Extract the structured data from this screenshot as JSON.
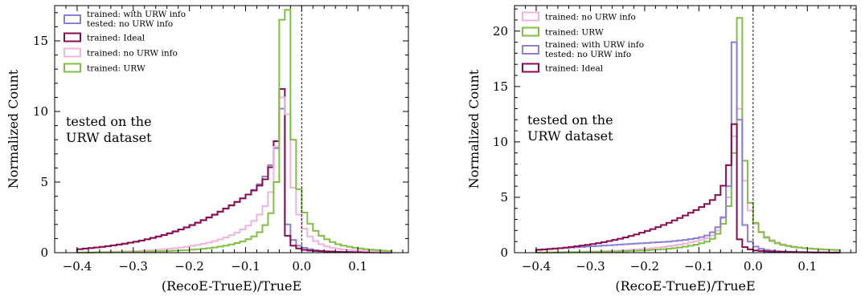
{
  "chart_data": [
    {
      "type": "step-histogram",
      "xlabel": "(RecoE-TrueE)/TrueE",
      "ylabel": "Normalized Count",
      "xlim": [
        -0.44,
        0.19
      ],
      "ylim": [
        0,
        17.5
      ],
      "xticks": [
        -0.4,
        -0.3,
        -0.2,
        -0.1,
        0.0,
        0.1
      ],
      "xtick_labels": [
        "−0.4",
        "−0.3",
        "−0.2",
        "−0.1",
        "0.0",
        "0.1"
      ],
      "yticks": [
        0,
        5,
        10,
        15
      ],
      "ytick_labels": [
        "0",
        "5",
        "10",
        "15"
      ],
      "vline_x": 0.0,
      "annotation": [
        "tested on the",
        "URW dataset"
      ],
      "legend_location": "upper-left",
      "bin_start": -0.4,
      "bin_width": 0.01,
      "series": [
        {
          "name": "trained: with URW info\ntested: no URW info",
          "color": "#8b7fd6",
          "values": [
            0.25,
            0.29,
            0.33,
            0.37,
            0.41,
            0.46,
            0.51,
            0.57,
            0.63,
            0.7,
            0.77,
            0.85,
            0.94,
            1.03,
            1.13,
            1.24,
            1.36,
            1.49,
            1.63,
            1.78,
            1.94,
            2.11,
            2.29,
            2.48,
            2.68,
            2.89,
            3.11,
            3.34,
            3.58,
            3.84,
            4.12,
            4.45,
            4.85,
            5.4,
            6.2,
            7.4,
            10.2,
            2.0,
            0.9,
            0.5,
            0.35,
            0.25,
            0.18,
            0.14,
            0.11,
            0.09,
            0.07,
            0.06,
            0.05,
            0.04,
            0.03,
            0.03,
            0.02,
            0.02,
            0.02,
            0.01
          ]
        },
        {
          "name": "trained: Ideal",
          "color": "#8b0a50",
          "values": [
            0.25,
            0.29,
            0.33,
            0.37,
            0.41,
            0.46,
            0.52,
            0.58,
            0.64,
            0.71,
            0.78,
            0.86,
            0.95,
            1.05,
            1.15,
            1.26,
            1.38,
            1.51,
            1.65,
            1.8,
            1.96,
            2.13,
            2.31,
            2.5,
            2.7,
            2.91,
            3.13,
            3.36,
            3.6,
            3.85,
            4.12,
            4.4,
            4.75,
            5.2,
            6.05,
            7.9,
            11.6,
            1.2,
            0.5,
            0.3,
            0.2,
            0.15,
            0.12,
            0.1,
            0.08,
            0.07,
            0.06,
            0.05,
            0.04,
            0.03,
            0.03,
            0.02,
            0.02,
            0.02,
            0.01,
            0.01
          ]
        },
        {
          "name": "trained: no URW info",
          "color": "#f0b3dc",
          "values": [
            0.02,
            0.03,
            0.03,
            0.04,
            0.05,
            0.06,
            0.07,
            0.08,
            0.09,
            0.1,
            0.12,
            0.14,
            0.16,
            0.18,
            0.21,
            0.24,
            0.28,
            0.32,
            0.37,
            0.42,
            0.48,
            0.55,
            0.63,
            0.72,
            0.82,
            0.94,
            1.08,
            1.24,
            1.43,
            1.65,
            1.92,
            2.25,
            2.7,
            3.3,
            4.3,
            7.5,
            11.0,
            9.8,
            4.6,
            2.7,
            1.7,
            1.15,
            0.82,
            0.6,
            0.45,
            0.35,
            0.28,
            0.23,
            0.19,
            0.16,
            0.14,
            0.12,
            0.1,
            0.09,
            0.08,
            0.07
          ]
        },
        {
          "name": "trained: URW",
          "color": "#7fc043",
          "values": [
            0.01,
            0.01,
            0.01,
            0.02,
            0.02,
            0.02,
            0.03,
            0.03,
            0.04,
            0.04,
            0.05,
            0.06,
            0.07,
            0.08,
            0.09,
            0.1,
            0.12,
            0.14,
            0.16,
            0.18,
            0.21,
            0.24,
            0.28,
            0.32,
            0.37,
            0.43,
            0.5,
            0.58,
            0.68,
            0.8,
            0.95,
            1.15,
            1.45,
            1.95,
            2.8,
            5.0,
            16.5,
            17.2,
            8.0,
            4.5,
            2.85,
            2.05,
            1.55,
            1.2,
            0.95,
            0.75,
            0.6,
            0.5,
            0.42,
            0.35,
            0.3,
            0.25,
            0.21,
            0.18,
            0.15,
            0.12
          ]
        }
      ]
    },
    {
      "type": "step-histogram",
      "xlabel": "(RecoE-TrueE)/TrueE",
      "ylabel": "Normalized Count",
      "xlim": [
        -0.44,
        0.19
      ],
      "ylim": [
        0,
        22.3
      ],
      "xticks": [
        -0.4,
        -0.3,
        -0.2,
        -0.1,
        0.0,
        0.1
      ],
      "xtick_labels": [
        "−0.4",
        "−0.3",
        "−0.2",
        "−0.1",
        "0.0",
        "0.1"
      ],
      "yticks": [
        0,
        5,
        10,
        15,
        20
      ],
      "ytick_labels": [
        "0",
        "5",
        "10",
        "15",
        "20"
      ],
      "vline_x": 0.0,
      "annotation": [
        "tested on the",
        "URW dataset"
      ],
      "legend_location": "upper-left",
      "bin_start": -0.4,
      "bin_width": 0.01,
      "series": [
        {
          "name": "trained: no URW info",
          "color": "#f0b3dc",
          "values": [
            0.02,
            0.03,
            0.03,
            0.04,
            0.05,
            0.06,
            0.07,
            0.08,
            0.09,
            0.1,
            0.11,
            0.12,
            0.14,
            0.16,
            0.18,
            0.2,
            0.23,
            0.26,
            0.29,
            0.33,
            0.37,
            0.41,
            0.46,
            0.52,
            0.58,
            0.65,
            0.73,
            0.82,
            0.92,
            1.03,
            1.15,
            1.3,
            1.55,
            2.0,
            3.1,
            5.0,
            10.5,
            13.0,
            6.5,
            3.8,
            2.6,
            1.9,
            1.45,
            1.15,
            0.92,
            0.76,
            0.64,
            0.55,
            0.48,
            0.42,
            0.38,
            0.34,
            0.31,
            0.28,
            0.26,
            0.24
          ]
        },
        {
          "name": "trained: URW",
          "color": "#7fc043",
          "values": [
            0.01,
            0.01,
            0.02,
            0.02,
            0.02,
            0.03,
            0.03,
            0.04,
            0.04,
            0.05,
            0.06,
            0.07,
            0.08,
            0.09,
            0.1,
            0.11,
            0.13,
            0.15,
            0.17,
            0.19,
            0.22,
            0.25,
            0.28,
            0.32,
            0.36,
            0.41,
            0.47,
            0.54,
            0.62,
            0.72,
            0.85,
            1.0,
            1.25,
            1.7,
            2.6,
            4.2,
            9.0,
            21.2,
            8.3,
            4.5,
            2.7,
            1.85,
            1.35,
            1.05,
            0.84,
            0.7,
            0.6,
            0.52,
            0.46,
            0.41,
            0.37,
            0.34,
            0.31,
            0.28,
            0.26,
            0.24
          ]
        },
        {
          "name": "trained: with URW info\ntested: no URW info",
          "color": "#8b7fd6",
          "values": [
            0.28,
            0.31,
            0.34,
            0.37,
            0.4,
            0.43,
            0.46,
            0.49,
            0.52,
            0.55,
            0.58,
            0.61,
            0.64,
            0.67,
            0.7,
            0.73,
            0.76,
            0.79,
            0.82,
            0.85,
            0.88,
            0.91,
            0.94,
            0.97,
            1.0,
            1.05,
            1.1,
            1.15,
            1.22,
            1.3,
            1.4,
            1.55,
            1.85,
            2.3,
            3.2,
            6.0,
            19.0,
            12.0,
            2.5,
            1.0,
            0.55,
            0.35,
            0.25,
            0.18,
            0.14,
            0.11,
            0.09,
            0.07,
            0.06,
            0.05,
            0.04,
            0.03,
            0.03,
            0.02,
            0.02,
            0.02
          ]
        },
        {
          "name": "trained: Ideal",
          "color": "#8b0a50",
          "values": [
            0.25,
            0.29,
            0.33,
            0.37,
            0.41,
            0.46,
            0.52,
            0.58,
            0.64,
            0.71,
            0.78,
            0.86,
            0.95,
            1.05,
            1.15,
            1.26,
            1.38,
            1.51,
            1.65,
            1.8,
            1.96,
            2.13,
            2.31,
            2.5,
            2.7,
            2.91,
            3.13,
            3.36,
            3.6,
            3.85,
            4.12,
            4.4,
            4.75,
            5.2,
            6.05,
            7.9,
            11.6,
            1.2,
            0.5,
            0.3,
            0.2,
            0.15,
            0.12,
            0.1,
            0.08,
            0.07,
            0.06,
            0.05,
            0.04,
            0.03,
            0.03,
            0.02,
            0.02,
            0.02,
            0.01,
            0.01
          ]
        }
      ]
    }
  ]
}
